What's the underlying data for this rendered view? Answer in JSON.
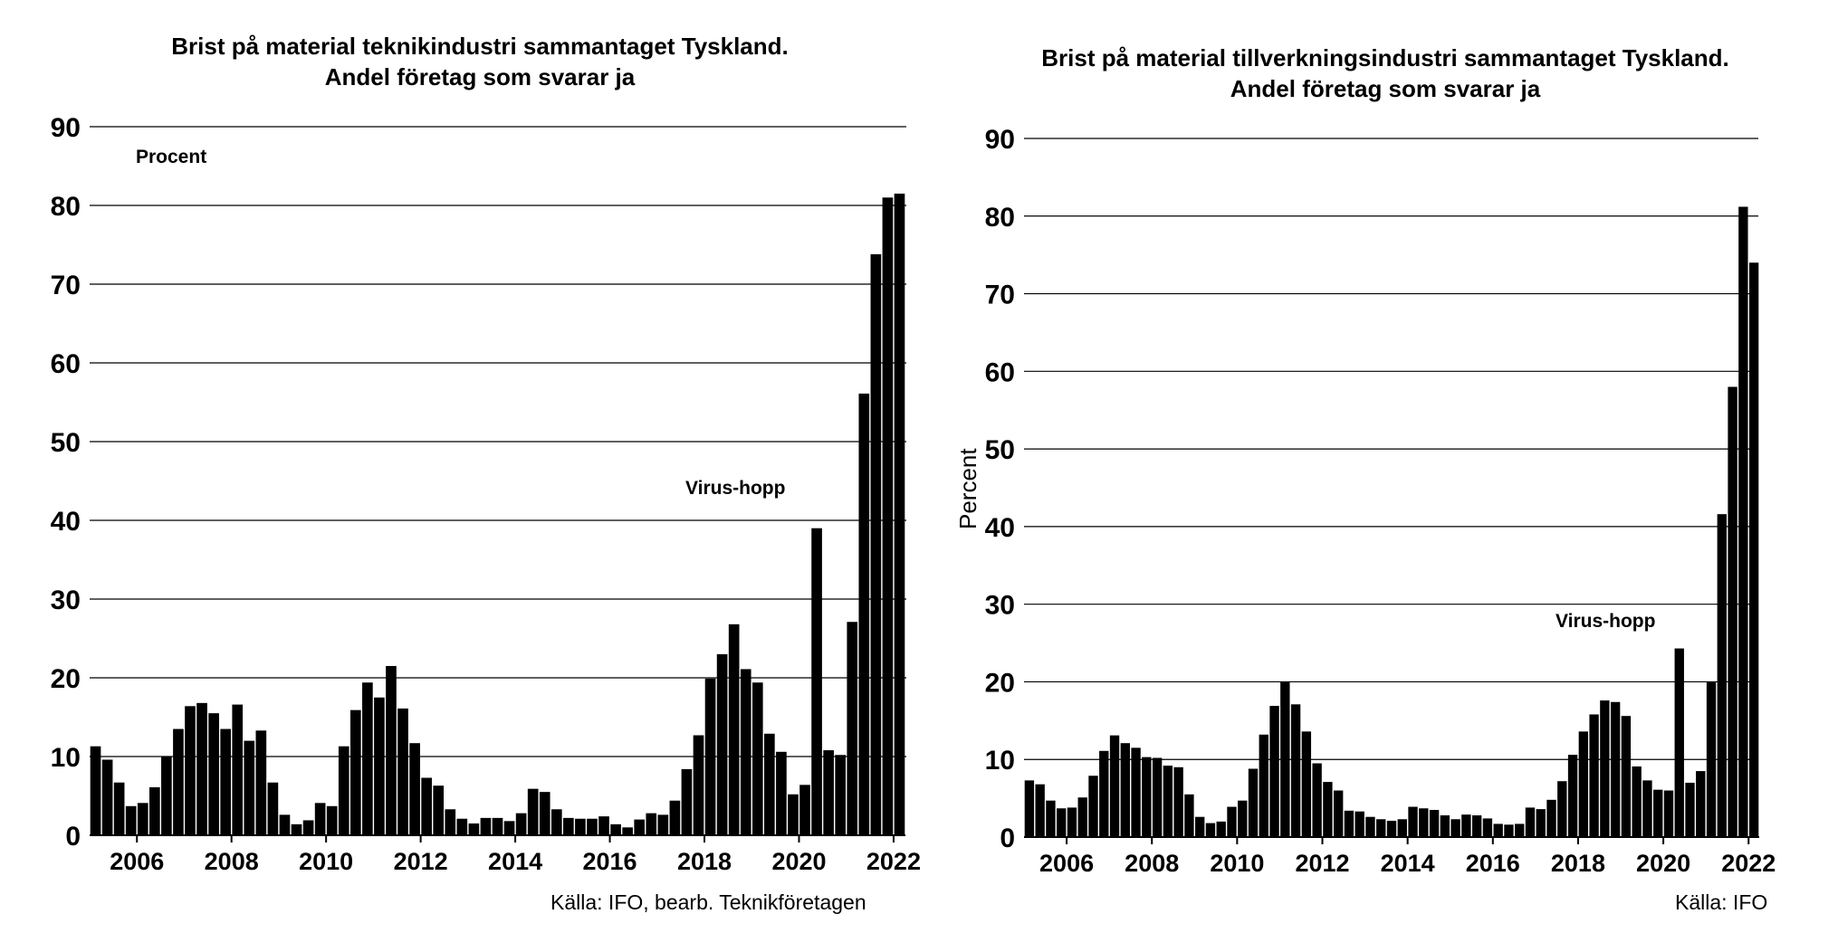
{
  "chart_data": [
    {
      "type": "bar",
      "title": "Brist på material teknikindustri sammantaget Tyskland.",
      "subtitle": "Andel företag som svarar ja",
      "unit_label": "Procent",
      "ylabel": "",
      "source": "Källa: IFO, bearb. Teknikföretagen",
      "annotation": "Virus-hopp",
      "ylim": [
        0,
        90
      ],
      "yticks": [
        0,
        10,
        20,
        30,
        40,
        50,
        60,
        70,
        80,
        90
      ],
      "yticklabels": [
        "0",
        "10",
        "20",
        "30",
        "40",
        "50",
        "60",
        "70",
        "80",
        "90"
      ],
      "xticks": [
        2006,
        2008,
        2010,
        2012,
        2014,
        2016,
        2018,
        2020,
        2022
      ],
      "xticklabels": [
        "2006",
        "2008",
        "2010",
        "2012",
        "2014",
        "2016",
        "2018",
        "2020",
        "2022"
      ],
      "x_start": 2005.0,
      "x_step": 0.25,
      "grid": true,
      "values": [
        11.3,
        9.6,
        6.7,
        3.7,
        4.1,
        6.1,
        10.0,
        13.5,
        16.4,
        16.8,
        15.5,
        13.5,
        16.6,
        12.0,
        13.3,
        6.7,
        2.6,
        1.4,
        1.9,
        4.1,
        3.7,
        11.3,
        15.9,
        19.4,
        17.5,
        21.5,
        16.1,
        11.7,
        7.3,
        6.3,
        3.3,
        2.1,
        1.5,
        2.2,
        2.2,
        1.8,
        2.8,
        5.9,
        5.5,
        3.3,
        2.2,
        2.1,
        2.1,
        2.4,
        1.4,
        1.0,
        2.0,
        2.8,
        2.6,
        4.4,
        8.4,
        12.7,
        19.9,
        23.0,
        26.8,
        21.1,
        19.4,
        12.9,
        10.6,
        5.2,
        6.4,
        39.0,
        10.8,
        10.2,
        27.1,
        56.1,
        73.8,
        81.0,
        81.5
      ]
    },
    {
      "type": "bar",
      "title": "Brist på material tillverkningsindustri sammantaget Tyskland.",
      "subtitle": "Andel företag som svarar ja",
      "unit_label": "",
      "ylabel": "Percent",
      "source": "Källa: IFO",
      "annotation": "Virus-hopp",
      "ylim": [
        0,
        90
      ],
      "yticks": [
        0,
        10,
        20,
        30,
        40,
        50,
        60,
        70,
        80,
        90
      ],
      "yticklabels": [
        "0",
        "10",
        "20",
        "30",
        "40",
        "50",
        "60",
        "70",
        "80",
        "90"
      ],
      "xticks": [
        2006,
        2008,
        2010,
        2012,
        2014,
        2016,
        2018,
        2020,
        2022
      ],
      "xticklabels": [
        "2006",
        "2008",
        "2010",
        "2012",
        "2014",
        "2016",
        "2018",
        "2020",
        "2022"
      ],
      "x_start": 2005.0,
      "x_step": 0.25,
      "grid": true,
      "values": [
        7.3,
        6.8,
        4.7,
        3.7,
        3.8,
        5.1,
        7.9,
        11.1,
        13.1,
        12.1,
        11.5,
        10.3,
        10.2,
        9.2,
        9.0,
        5.5,
        2.6,
        1.8,
        2.0,
        3.9,
        4.7,
        8.8,
        13.2,
        16.9,
        20.0,
        17.1,
        13.6,
        9.5,
        7.1,
        6.0,
        3.4,
        3.3,
        2.6,
        2.3,
        2.1,
        2.3,
        3.9,
        3.7,
        3.5,
        2.8,
        2.3,
        2.9,
        2.8,
        2.4,
        1.7,
        1.6,
        1.7,
        3.8,
        3.6,
        4.8,
        7.2,
        10.6,
        13.6,
        15.8,
        17.6,
        17.4,
        15.6,
        9.1,
        7.3,
        6.1,
        6.0,
        24.3,
        7.0,
        8.5,
        20.0,
        41.6,
        58.0,
        81.2,
        74.0
      ]
    }
  ]
}
